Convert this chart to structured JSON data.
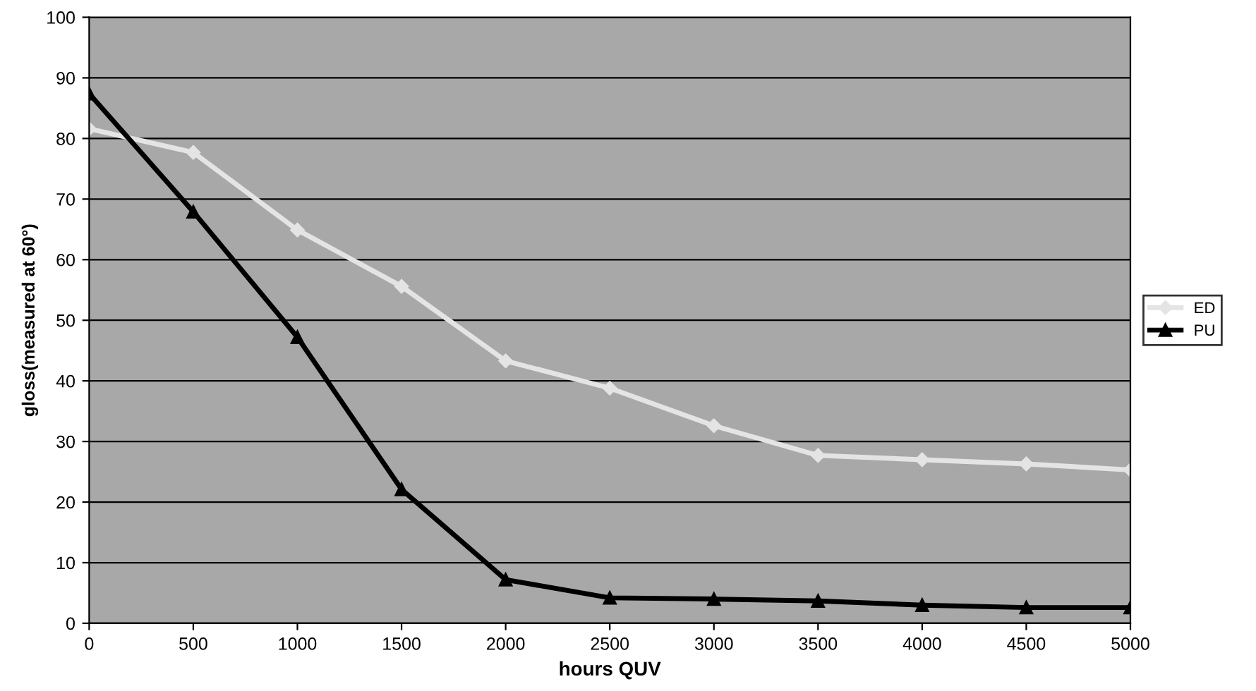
{
  "chart_data": {
    "type": "line",
    "xlabel": "hours QUV",
    "ylabel": "gloss(measured at 60°)",
    "x": [
      0,
      500,
      1000,
      1500,
      2000,
      2500,
      3000,
      3500,
      4000,
      4500,
      5000
    ],
    "xlim": [
      0,
      5000
    ],
    "xticks": [
      0,
      500,
      1000,
      1500,
      2000,
      2500,
      3000,
      3500,
      4000,
      4500,
      5000
    ],
    "ylim": [
      0,
      100
    ],
    "yticks": [
      0,
      10,
      20,
      30,
      40,
      50,
      60,
      70,
      80,
      90,
      100
    ],
    "grid": "y",
    "legend": "right",
    "line_style": "solid",
    "series": [
      {
        "name": "ED",
        "color": "#e4e4e4",
        "marker": "diamond",
        "values": [
          81.6,
          77.7,
          64.9,
          55.6,
          43.3,
          38.8,
          32.6,
          27.7,
          27.0,
          26.3,
          25.3
        ]
      },
      {
        "name": "PU",
        "color": "#000000",
        "marker": "triangle",
        "values": [
          87.4,
          67.9,
          47.2,
          22.1,
          7.2,
          4.2,
          4.0,
          3.7,
          3.0,
          2.6,
          2.6
        ]
      }
    ]
  }
}
